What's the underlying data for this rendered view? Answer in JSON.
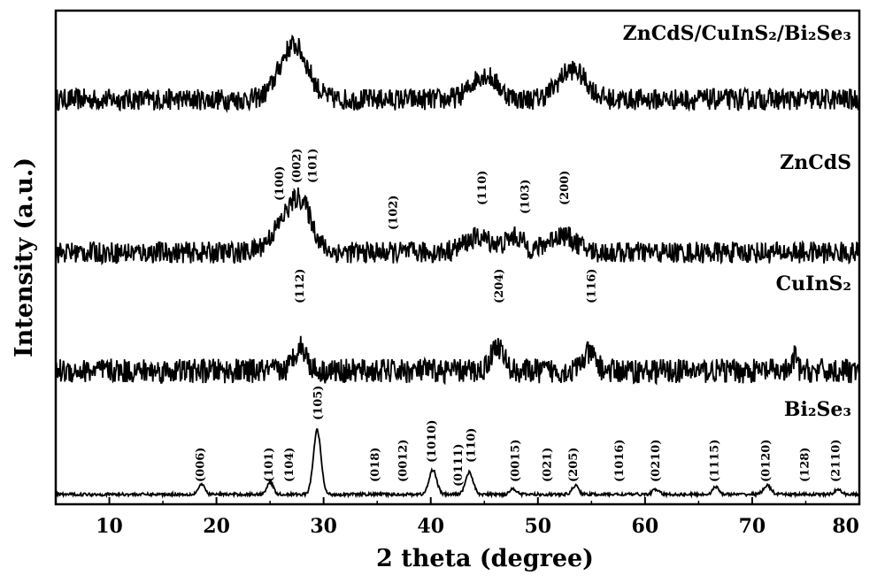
{
  "chart_data": {
    "type": "line",
    "title": "",
    "xlabel": "2 theta (degree)",
    "ylabel": "Intensity (a.u.)",
    "xlim": [
      5,
      80
    ],
    "xticks": [
      10,
      20,
      30,
      40,
      50,
      60,
      70,
      80
    ],
    "grid": false,
    "legend": "none",
    "series": [
      {
        "name": "ZnCdS/CuInS2/Bi2Se3",
        "baseline": 0.82,
        "noise": 0.022,
        "peaks": [
          {
            "x": 27.2,
            "height": 0.11,
            "width": 1.3
          },
          {
            "x": 45.0,
            "height": 0.05,
            "width": 1.2
          },
          {
            "x": 53.2,
            "height": 0.06,
            "width": 1.3
          }
        ],
        "hkl": []
      },
      {
        "name": "ZnCdS",
        "baseline": 0.51,
        "noise": 0.022,
        "peaks": [
          {
            "x": 26.6,
            "height": 0.06,
            "width": 1.4
          },
          {
            "x": 28.0,
            "height": 0.07,
            "width": 1.0
          },
          {
            "x": 44.5,
            "height": 0.03,
            "width": 1.4
          },
          {
            "x": 47.9,
            "height": 0.03,
            "width": 0.8
          },
          {
            "x": 52.2,
            "height": 0.035,
            "width": 1.3
          }
        ],
        "hkl": [
          {
            "label": "(100)",
            "x": 25.9
          },
          {
            "label": "(002)",
            "x": 27.5
          },
          {
            "label": "(101)",
            "x": 29.0
          },
          {
            "label": "(102)",
            "x": 36.5
          },
          {
            "label": "(110)",
            "x": 44.8
          },
          {
            "label": "(103)",
            "x": 48.8
          },
          {
            "label": "(200)",
            "x": 52.5
          }
        ]
      },
      {
        "name": "CuInS2",
        "baseline": 0.27,
        "noise": 0.025,
        "peaks": [
          {
            "x": 27.8,
            "height": 0.05,
            "width": 0.6
          },
          {
            "x": 46.2,
            "height": 0.05,
            "width": 0.6
          },
          {
            "x": 54.8,
            "height": 0.035,
            "width": 0.6
          },
          {
            "x": 74.0,
            "height": 0.03,
            "width": 0.2
          }
        ],
        "hkl": [
          {
            "label": "(112)",
            "x": 27.8
          },
          {
            "label": "(204)",
            "x": 46.4
          },
          {
            "label": "(116)",
            "x": 55.0
          }
        ]
      },
      {
        "name": "Bi2Se3",
        "baseline": 0.02,
        "noise": 0.003,
        "peaks": [
          {
            "x": 18.6,
            "height": 0.02,
            "width": 0.3
          },
          {
            "x": 25.0,
            "height": 0.025,
            "width": 0.3
          },
          {
            "x": 29.4,
            "height": 0.13,
            "width": 0.35
          },
          {
            "x": 40.2,
            "height": 0.05,
            "width": 0.35
          },
          {
            "x": 43.6,
            "height": 0.045,
            "width": 0.35
          },
          {
            "x": 47.7,
            "height": 0.012,
            "width": 0.3
          },
          {
            "x": 53.5,
            "height": 0.018,
            "width": 0.3
          },
          {
            "x": 61.0,
            "height": 0.01,
            "width": 0.3
          },
          {
            "x": 66.6,
            "height": 0.015,
            "width": 0.3
          },
          {
            "x": 71.4,
            "height": 0.018,
            "width": 0.35
          },
          {
            "x": 78.0,
            "height": 0.01,
            "width": 0.3
          }
        ],
        "hkl": [
          {
            "label": "(006)",
            "x": 18.5
          },
          {
            "label": "(101)",
            "x": 24.9
          },
          {
            "label": "(104)",
            "x": 26.8
          },
          {
            "label": "(105)",
            "x": 29.5
          },
          {
            "label": "(018)",
            "x": 34.8
          },
          {
            "label": "(0012)",
            "x": 37.4
          },
          {
            "label": "(1010)",
            "x": 40.1
          },
          {
            "label": "(0111)",
            "x": 42.6
          },
          {
            "label": "(110)",
            "x": 43.8
          },
          {
            "label": "(0015)",
            "x": 47.9
          },
          {
            "label": "(021)",
            "x": 50.9
          },
          {
            "label": "(205)",
            "x": 53.3
          },
          {
            "label": "(1016)",
            "x": 57.6
          },
          {
            "label": "(0210)",
            "x": 61.0
          },
          {
            "label": "(1115)",
            "x": 66.5
          },
          {
            "label": "(0120)",
            "x": 71.3
          },
          {
            "label": "(128)",
            "x": 74.9
          },
          {
            "label": "(2110)",
            "x": 77.8
          }
        ]
      }
    ]
  },
  "labels": {
    "series_1": "ZnCdS/CuInS₂/Bi₂Se₃",
    "series_2": "ZnCdS",
    "series_3": "CuInS₂",
    "series_4": "Bi₂Se₃"
  }
}
